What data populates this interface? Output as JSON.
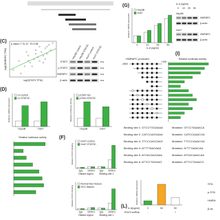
{
  "panel_c": {
    "label": "(C)",
    "annotation": "p value=7.7e-12",
    "r": "R=0.38",
    "x_label": "log2(STAT3 TPM)",
    "y_label": "log2(HNRNPC TPM)",
    "x": [
      5.2,
      5.5,
      5.8,
      6.0,
      6.1,
      6.3,
      6.4,
      6.5,
      6.6,
      6.7,
      6.8,
      6.9,
      7.0,
      7.1,
      7.2,
      5.9,
      6.2,
      6.6,
      6.9,
      7.3,
      5.6,
      6.0,
      6.4,
      6.8,
      7.0
    ],
    "y": [
      6.4,
      6.9,
      6.6,
      7.2,
      6.8,
      7.0,
      7.5,
      7.1,
      6.9,
      7.4,
      7.2,
      7.6,
      7.3,
      7.8,
      7.5,
      7.4,
      6.6,
      7.7,
      7.0,
      7.9,
      6.2,
      6.9,
      7.3,
      6.8,
      7.7
    ],
    "xlim": [
      5,
      7.5
    ],
    "ylim": [
      6,
      8
    ]
  },
  "blot_1": {
    "columns": [
      "Hep3B-control",
      "Hep3B-STAT3C",
      "Huh7-control",
      "Huh7-STAT3C"
    ],
    "rows": [
      "STAT3",
      "p-STAT3",
      "HNRNPC",
      "β-actin"
    ],
    "kda": [
      "kDa",
      "kDa",
      "kDa",
      "kDa"
    ]
  },
  "panel_d": {
    "label": "(D)",
    "charts": [
      {
        "y_label": "Relative mRNA expression",
        "categories": [
          "Hep3B",
          "Huh7"
        ],
        "ylim": [
          0,
          6
        ],
        "series": [
          {
            "name": "LV-control",
            "color": "#ffffff",
            "values": [
              1,
              1
            ]
          },
          {
            "name": "LV-STAT3C",
            "color": "#3cb043",
            "values": [
              3.8,
              4.5
            ]
          }
        ]
      },
      {
        "y_label": "Relative luciferase activity",
        "categories": [
          "Hep3B",
          "Huh7"
        ],
        "ylim": [
          0,
          4
        ],
        "series": [
          {
            "name": "pCMV-Yes",
            "color": "#ffffff",
            "values": [
              1,
              1
            ]
          },
          {
            "name": "pCMV-STAT3C",
            "color": "#3cb043",
            "values": [
              3,
              2.4
            ]
          }
        ]
      }
    ]
  },
  "panel_e": {
    "x_label": "Relative luciferase activity",
    "values": [
      1,
      0.3,
      0.4,
      0.6,
      0.8,
      0.9,
      0.95,
      0.7
    ],
    "xlim": [
      0,
      1.2
    ]
  },
  "panel_f": {
    "label": "(F)",
    "charts": [
      {
        "y_label": "Relative STAT3 binding",
        "categories": [
          "IgG",
          "STAT3",
          "IgG",
          "STAT3"
        ],
        "groups": [
          "Distant region",
          "Binding site 1"
        ],
        "ylim": [
          0,
          5
        ],
        "series": [
          {
            "name": "Huh7-control",
            "color": "#ffffff",
            "values": [
              0.2,
              0.3,
              0.3,
              1.5
            ]
          },
          {
            "name": "Huh7-STAT3C",
            "color": "#3cb043",
            "values": [
              0.2,
              0.3,
              0.3,
              4
            ]
          }
        ]
      },
      {
        "y_label": "Relative STAT3 binding",
        "categories": [
          "IgG",
          "STAT3",
          "IgG",
          "STAT3"
        ],
        "groups": [
          "Distant region",
          "Binding site 1"
        ],
        "ylim": [
          0,
          5
        ],
        "series": [
          {
            "name": "Normal liver tissues",
            "color": "#ffffff",
            "values": [
              0.2,
              0.3,
              0.3,
              1.2
            ]
          },
          {
            "name": "HCC tissues",
            "color": "#3cb043",
            "values": [
              0.2,
              0.4,
              0.3,
              3.8
            ]
          }
        ]
      }
    ]
  },
  "panel_g": {
    "label": "(G)",
    "chart": {
      "y_label": "Relative mRNA expression",
      "x_label": "IL-6 (ng/ml)",
      "categories": [
        "0",
        "10",
        "25",
        "50"
      ],
      "ylim": [
        0,
        5
      ],
      "series": [
        {
          "name": "Hep3B",
          "color": "#ffffff",
          "values": [
            1,
            1.5,
            2.5,
            3.5
          ]
        },
        {
          "name": "Huh7",
          "color": "#3cb043",
          "values": [
            1,
            1.8,
            2.8,
            4
          ]
        }
      ]
    },
    "blot": {
      "treatment": "IL-6 (ng/ml)",
      "doses": [
        "0",
        "10",
        "25",
        "50"
      ],
      "cell_lines": [
        "Hep3B",
        "Huh7"
      ],
      "rows": [
        "HNRNPC",
        "β-actin"
      ]
    }
  },
  "panel_i": {
    "label": "(I)",
    "title": "HNRNPC promoter",
    "x_label": "Relative luciferase activity",
    "positions": [
      "-1664",
      "+135"
    ],
    "values": [
      1,
      0.9,
      0.8,
      0.6,
      0.4,
      0.3,
      0.5,
      0.6,
      0.7,
      0.5,
      0.6,
      0.4,
      0.3
    ],
    "xlim": [
      0,
      1.2
    ],
    "binding_sites": [
      {
        "site": "Binding site 1: GTCCTGGAAAA",
        "mutation": "Mutation: GTCCTAAAACA"
      },
      {
        "site": "Binding site 2: CATCCAGGAAA",
        "mutation": "Mutation: CATCCAAACGA"
      },
      {
        "site": "Binding site 3: TTCCCAGCAAG",
        "mutation": "Mutation: TTCCCAAACGA"
      },
      {
        "site": "Binding site 4: ATTTTAAGAAA",
        "mutation": "Mutation: ATTTTAAACAA"
      },
      {
        "site": "Binding site 5: ATGACAAGAAA",
        "mutation": "Mutation: ATGACAAACAA"
      },
      {
        "site": "Binding site 6: ATTCCTAGAAG",
        "mutation": "Mutation: ATTCCTAAACG"
      }
    ]
  },
  "panel_l": {
    "label": "(L)",
    "y_label": "Relative mRNA expression",
    "values": [
      1,
      5,
      1.8
    ],
    "colors": [
      "#3cb043",
      "#f5a623",
      "#ffffff"
    ],
    "ylim": [
      0,
      6
    ],
    "rows": [
      {
        "name": "IL-6(ng/ml)",
        "cells": [
          "0",
          "50",
          "50"
        ]
      },
      {
        "name": "STAT3 shRNA",
        "cells": [
          "-",
          "-",
          "+"
        ]
      }
    ],
    "blot_rows": [
      "STA",
      "p-STA",
      "HNRN",
      "β-ac"
    ]
  }
}
